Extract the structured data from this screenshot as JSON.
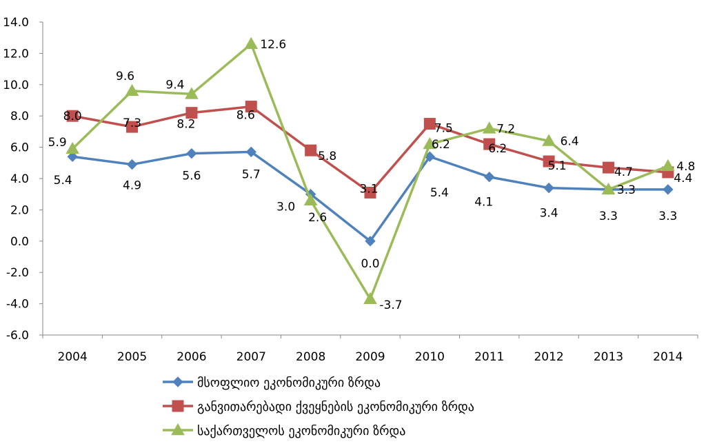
{
  "chart_data": {
    "type": "line",
    "title": "",
    "xlabel": "",
    "ylabel": "",
    "ylim": [
      -6.0,
      14.0
    ],
    "ytick_step": 2.0,
    "grid": false,
    "legend_position": "bottom",
    "categories": [
      "2004",
      "2005",
      "2006",
      "2007",
      "2008",
      "2009",
      "2010",
      "2011",
      "2012",
      "2013",
      "2014"
    ],
    "series": [
      {
        "name": "მსოფლიო ეკონომიკური ზრდა",
        "color": "#4F81BD",
        "marker": "diamond",
        "values": [
          5.4,
          4.9,
          5.6,
          5.7,
          3.0,
          0.0,
          5.4,
          4.1,
          3.4,
          3.3,
          3.3
        ],
        "labels": [
          "5.4",
          "4.9",
          "5.6",
          "5.7",
          "3.0",
          "0.0",
          "5.4",
          "4.1",
          "3.4",
          "3.3",
          "3.3"
        ]
      },
      {
        "name": "განვითარებადი ქვეყნების ეკონომიკური ზრდა",
        "color": "#C0504D",
        "marker": "square",
        "values": [
          8.0,
          7.3,
          8.2,
          8.6,
          5.8,
          3.1,
          7.5,
          6.2,
          5.1,
          4.7,
          4.4
        ],
        "labels": [
          "8.0",
          "7.3",
          "8.2",
          "8.6",
          "5.8",
          "3.1",
          "7.5",
          "6.2",
          "5.1",
          "4.7",
          "4.4"
        ]
      },
      {
        "name": "საქართველოს ეკონომიკური ზრდა",
        "color": "#9BBB59",
        "marker": "triangle",
        "values": [
          5.9,
          9.6,
          9.4,
          12.6,
          2.6,
          -3.7,
          6.2,
          7.2,
          6.4,
          3.3,
          4.8
        ],
        "labels": [
          "5.9",
          "9.6",
          "9.4",
          "12.6",
          "2.6",
          "-3.7",
          "6.2",
          "7.2",
          "6.4",
          "3.3",
          "4.8"
        ]
      }
    ]
  }
}
